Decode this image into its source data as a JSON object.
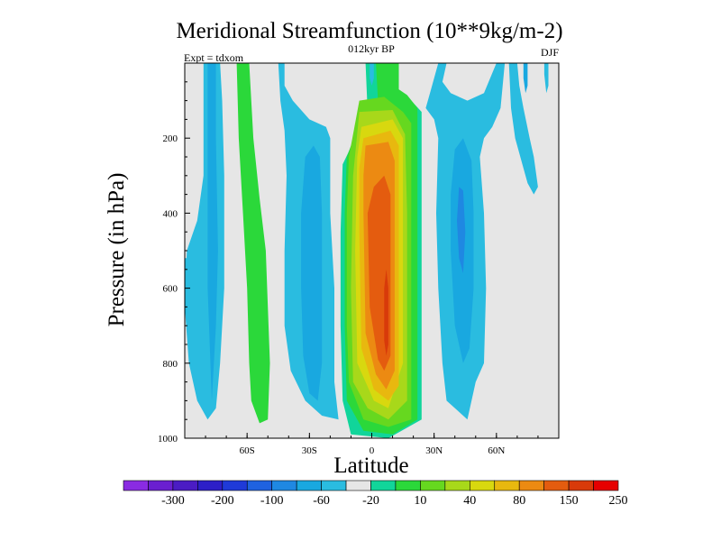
{
  "chart_data": {
    "type": "heatmap",
    "title": "Meridional Streamfunction (10**9kg/m-2)",
    "subtitle": "012kyr BP",
    "left_label": "Expt = tdxom",
    "right_label": "DJF",
    "xlabel": "Latitude",
    "ylabel": "Pressure (in hPa)",
    "xlim": [
      -90,
      90
    ],
    "ylim": [
      1000,
      0
    ],
    "x_ticks": [
      {
        "value": -60,
        "label": "60S"
      },
      {
        "value": -30,
        "label": "30S"
      },
      {
        "value": 0,
        "label": "0"
      },
      {
        "value": 30,
        "label": "30N"
      },
      {
        "value": 60,
        "label": "60N"
      }
    ],
    "y_ticks": [
      {
        "value": 200,
        "label": "200"
      },
      {
        "value": 400,
        "label": "400"
      },
      {
        "value": 600,
        "label": "600"
      },
      {
        "value": 800,
        "label": "800"
      },
      {
        "value": 1000,
        "label": "1000"
      }
    ],
    "colorbar": {
      "colors": [
        "#8a2be2",
        "#6a1fd0",
        "#4b1cc4",
        "#2d1fc8",
        "#1f3ad8",
        "#1f62e0",
        "#1f88e2",
        "#19a8e0",
        "#2abce0",
        "#e6e6e6",
        "#11d59a",
        "#2bd83a",
        "#66d81f",
        "#a8d81a",
        "#d8d80f",
        "#e8b80f",
        "#ec8a12",
        "#e45c0f",
        "#d83a0a",
        "#e60000"
      ],
      "labels": [
        "-300",
        "-200",
        "-100",
        "-60",
        "-20",
        "10",
        "40",
        "80",
        "150",
        "250"
      ]
    },
    "grid": false,
    "contours": [
      {
        "name": "SH polar cell",
        "color": "#2abce0",
        "points": [
          [
            -81,
            0
          ],
          [
            -73,
            0
          ],
          [
            -72,
            100
          ],
          [
            -71,
            300
          ],
          [
            -71,
            600
          ],
          [
            -73,
            800
          ],
          [
            -75,
            920
          ],
          [
            -79,
            950
          ],
          [
            -84,
            900
          ],
          [
            -88,
            800
          ],
          [
            -90,
            650
          ],
          [
            -89,
            500
          ],
          [
            -84,
            420
          ],
          [
            -81,
            300
          ],
          [
            -81,
            100
          ]
        ]
      },
      {
        "name": "SH polar cell core",
        "color": "#19a8e0",
        "points": [
          [
            -79,
            0
          ],
          [
            -75,
            0
          ],
          [
            -75,
            200
          ],
          [
            -74,
            500
          ],
          [
            -75,
            700
          ],
          [
            -77,
            900
          ],
          [
            -79,
            600
          ],
          [
            -79,
            300
          ]
        ]
      },
      {
        "name": "SH midlatitude cell",
        "color": "#2bd83a",
        "points": [
          [
            -65,
            0
          ],
          [
            -59,
            0
          ],
          [
            -57,
            200
          ],
          [
            -54,
            360
          ],
          [
            -51,
            500
          ],
          [
            -49,
            800
          ],
          [
            -50,
            950
          ],
          [
            -54,
            960
          ],
          [
            -58,
            900
          ],
          [
            -59,
            800
          ],
          [
            -60,
            600
          ],
          [
            -62,
            400
          ],
          [
            -64,
            200
          ]
        ]
      },
      {
        "name": "SH subtropical tongue",
        "color": "#2abce0",
        "points": [
          [
            -45,
            0
          ],
          [
            -42,
            0
          ],
          [
            -42,
            60
          ],
          [
            -38,
            100
          ],
          [
            -30,
            150
          ],
          [
            -22,
            170
          ],
          [
            -20,
            200
          ],
          [
            -20,
            400
          ],
          [
            -18,
            600
          ],
          [
            -18,
            850
          ],
          [
            -16,
            950
          ],
          [
            -24,
            940
          ],
          [
            -32,
            900
          ],
          [
            -39,
            820
          ],
          [
            -42,
            700
          ],
          [
            -42,
            500
          ],
          [
            -41,
            300
          ],
          [
            -42,
            180
          ],
          [
            -44,
            100
          ]
        ]
      },
      {
        "name": "SH Hadley inner",
        "color": "#19a8e0",
        "points": [
          [
            -32,
            250
          ],
          [
            -28,
            220
          ],
          [
            -25,
            250
          ],
          [
            -24,
            400
          ],
          [
            -24,
            600
          ],
          [
            -24,
            800
          ],
          [
            -26,
            900
          ],
          [
            -30,
            880
          ],
          [
            -33,
            780
          ],
          [
            -34,
            600
          ],
          [
            -34,
            400
          ]
        ]
      },
      {
        "name": "Hadley cell 10",
        "color": "#11d59a",
        "points": [
          [
            -3,
            0
          ],
          [
            5,
            0
          ],
          [
            7,
            60
          ],
          [
            13,
            80
          ],
          [
            19,
            100
          ],
          [
            24,
            130
          ],
          [
            24,
            300
          ],
          [
            24,
            600
          ],
          [
            24,
            950
          ],
          [
            8,
            1000
          ],
          [
            -10,
            990
          ],
          [
            -14,
            900
          ],
          [
            -15,
            700
          ],
          [
            -15,
            450
          ],
          [
            -14,
            270
          ],
          [
            -8,
            200
          ],
          [
            -2,
            130
          ]
        ]
      },
      {
        "name": "Hadley cell 40",
        "color": "#2bd83a",
        "points": [
          [
            2,
            0
          ],
          [
            13,
            0
          ],
          [
            13,
            70
          ],
          [
            17,
            85
          ],
          [
            22,
            120
          ],
          [
            22,
            400
          ],
          [
            22,
            700
          ],
          [
            22,
            950
          ],
          [
            10,
            990
          ],
          [
            -4,
            980
          ],
          [
            -12,
            900
          ],
          [
            -13,
            700
          ],
          [
            -13,
            400
          ],
          [
            -12,
            250
          ],
          [
            -6,
            160
          ],
          [
            -1,
            110
          ],
          [
            3,
            100
          ]
        ]
      },
      {
        "name": "Hadley cell 80",
        "color": "#66d81f",
        "points": [
          [
            -6,
            100
          ],
          [
            6,
            90
          ],
          [
            15,
            130
          ],
          [
            19,
            160
          ],
          [
            19,
            500
          ],
          [
            19,
            800
          ],
          [
            19,
            950
          ],
          [
            8,
            970
          ],
          [
            -4,
            950
          ],
          [
            -11,
            850
          ],
          [
            -12,
            700
          ],
          [
            -12,
            400
          ],
          [
            -11,
            250
          ]
        ]
      },
      {
        "name": "Hadley cell 150",
        "color": "#a8d81a",
        "points": [
          [
            -6,
            130
          ],
          [
            10,
            125
          ],
          [
            16,
            190
          ],
          [
            17,
            400
          ],
          [
            17,
            700
          ],
          [
            17,
            900
          ],
          [
            8,
            950
          ],
          [
            -2,
            920
          ],
          [
            -9,
            850
          ],
          [
            -10,
            600
          ],
          [
            -9,
            300
          ]
        ]
      },
      {
        "name": "Hadley cell 150 inner",
        "color": "#d8d80f",
        "points": [
          [
            -5,
            170
          ],
          [
            10,
            150
          ],
          [
            15,
            200
          ],
          [
            15,
            500
          ],
          [
            15,
            800
          ],
          [
            8,
            920
          ],
          [
            1,
            900
          ],
          [
            -7,
            800
          ],
          [
            -8,
            500
          ],
          [
            -7,
            250
          ]
        ]
      },
      {
        "name": "Hadley cell 200",
        "color": "#e8b80f",
        "points": [
          [
            -4,
            200
          ],
          [
            9,
            180
          ],
          [
            13,
            220
          ],
          [
            13,
            600
          ],
          [
            13,
            860
          ],
          [
            8,
            900
          ],
          [
            1,
            870
          ],
          [
            -5,
            760
          ],
          [
            -6,
            450
          ],
          [
            -6,
            280
          ]
        ]
      },
      {
        "name": "Hadley cell 250",
        "color": "#ec8a12",
        "points": [
          [
            -3,
            220
          ],
          [
            8,
            210
          ],
          [
            11,
            260
          ],
          [
            11,
            600
          ],
          [
            11,
            820
          ],
          [
            7,
            870
          ],
          [
            2,
            830
          ],
          [
            -3,
            720
          ],
          [
            -4,
            400
          ],
          [
            -4,
            300
          ]
        ]
      },
      {
        "name": "Hadley cell 300",
        "color": "#e45c0f",
        "points": [
          [
            1,
            330
          ],
          [
            6,
            300
          ],
          [
            9,
            350
          ],
          [
            9,
            600
          ],
          [
            9,
            780
          ],
          [
            6,
            820
          ],
          [
            3,
            790
          ],
          [
            -1,
            650
          ],
          [
            -2,
            400
          ]
        ]
      },
      {
        "name": "Hadley cell core",
        "color": "#d83a0a",
        "points": [
          [
            7,
            550
          ],
          [
            8,
            600
          ],
          [
            8,
            750
          ],
          [
            7,
            780
          ],
          [
            6,
            740
          ],
          [
            6,
            600
          ]
        ]
      },
      {
        "name": "NH tongue",
        "color": "#2abce0",
        "points": [
          [
            32,
            0
          ],
          [
            36,
            0
          ],
          [
            34,
            50
          ],
          [
            38,
            80
          ],
          [
            46,
            100
          ],
          [
            54,
            80
          ],
          [
            60,
            0
          ],
          [
            64,
            0
          ],
          [
            62,
            120
          ],
          [
            58,
            170
          ],
          [
            54,
            200
          ],
          [
            52,
            250
          ],
          [
            54,
            400
          ],
          [
            55,
            600
          ],
          [
            54,
            800
          ],
          [
            50,
            850
          ],
          [
            46,
            950
          ],
          [
            36,
            900
          ],
          [
            34,
            800
          ],
          [
            32,
            600
          ],
          [
            31,
            400
          ],
          [
            32,
            200
          ],
          [
            30,
            150
          ],
          [
            26,
            120
          ],
          [
            28,
            80
          ]
        ]
      },
      {
        "name": "NH Ferrel inner",
        "color": "#19a8e0",
        "points": [
          [
            40,
            230
          ],
          [
            44,
            200
          ],
          [
            48,
            260
          ],
          [
            49,
            400
          ],
          [
            49,
            600
          ],
          [
            47,
            760
          ],
          [
            44,
            800
          ],
          [
            40,
            700
          ],
          [
            38,
            500
          ],
          [
            38,
            350
          ]
        ]
      },
      {
        "name": "NH Ferrel core",
        "color": "#1f88e2",
        "points": [
          [
            42,
            330
          ],
          [
            44,
            340
          ],
          [
            45,
            450
          ],
          [
            44,
            560
          ],
          [
            42,
            520
          ],
          [
            41,
            420
          ]
        ]
      },
      {
        "name": "NH polar cell",
        "color": "#2abce0",
        "points": [
          [
            66,
            0
          ],
          [
            70,
            0
          ],
          [
            71,
            60
          ],
          [
            73,
            120
          ],
          [
            76,
            200
          ],
          [
            78,
            250
          ],
          [
            80,
            330
          ],
          [
            78,
            350
          ],
          [
            75,
            320
          ],
          [
            72,
            260
          ],
          [
            69,
            200
          ],
          [
            67,
            120
          ]
        ]
      },
      {
        "name": "NH polar strip",
        "color": "#19a8e0",
        "points": [
          [
            73,
            0
          ],
          [
            75,
            0
          ],
          [
            75,
            60
          ],
          [
            74,
            80
          ],
          [
            73,
            40
          ]
        ]
      },
      {
        "name": "NH high latitude strip",
        "color": "#2abce0",
        "points": [
          [
            83,
            0
          ],
          [
            85,
            0
          ],
          [
            85,
            60
          ],
          [
            84,
            80
          ],
          [
            83,
            30
          ]
        ]
      },
      {
        "name": "Equatorial top band",
        "color": "#2abce0",
        "points": [
          [
            -1,
            0
          ],
          [
            1,
            0
          ],
          [
            1,
            40
          ],
          [
            0,
            60
          ],
          [
            -1,
            40
          ]
        ]
      },
      {
        "name": "SH polar edge",
        "color": "#2abce0",
        "points": [
          [
            -90,
            520
          ],
          [
            -89,
            520
          ],
          [
            -88,
            650
          ],
          [
            -90,
            660
          ]
        ]
      }
    ]
  }
}
